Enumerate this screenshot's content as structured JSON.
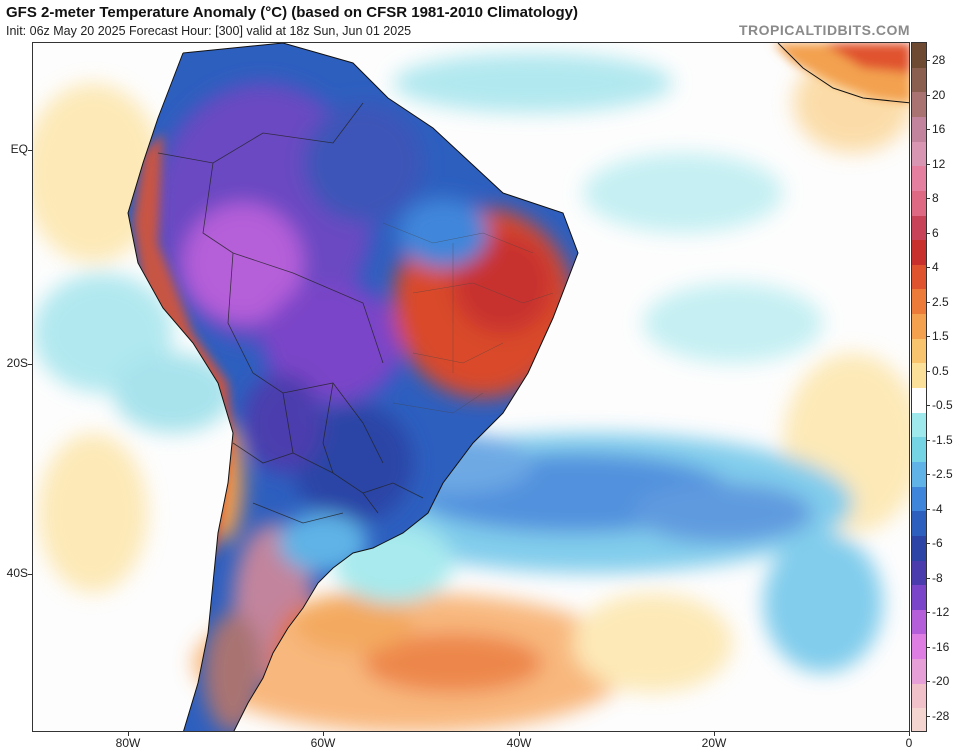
{
  "header": {
    "title": "GFS 2-meter Temperature Anomaly (°C) (based on CFSR 1981-2010 Climatology)",
    "subtitle": "Init: 06z May 20 2025   Forecast Hour: [300]   valid at 18z Sun, Jun 01 2025",
    "watermark": "TROPICALTIDBITS.COM"
  },
  "map": {
    "region": "South America",
    "lat_labels": [
      "EQ",
      "20S",
      "40S"
    ],
    "lon_labels": [
      "80W",
      "60W",
      "40W",
      "20W",
      "0"
    ]
  },
  "colorbar": {
    "labels": [
      "28",
      "20",
      "16",
      "12",
      "8",
      "6",
      "4",
      "2.5",
      "1.5",
      "0.5",
      "-0.5",
      "-1.5",
      "-2.5",
      "-4",
      "-6",
      "-8",
      "-12",
      "-16",
      "-20",
      "-28"
    ],
    "colors": [
      "#6e4a33",
      "#8a5f4f",
      "#a97372",
      "#c2849c",
      "#d996b2",
      "#e57fa0",
      "#dd6a82",
      "#c94358",
      "#c8302e",
      "#e0532f",
      "#ec7a39",
      "#f3a14f",
      "#f8c46e",
      "#fbe09a",
      "#ffffff",
      "#9fe8ec",
      "#74d4e4",
      "#5fb3e6",
      "#3f86da",
      "#2d5fbf",
      "#2b44a6",
      "#4b3cad",
      "#7a45c8",
      "#b55ed9",
      "#de7ee3",
      "#e6a0d7",
      "#f0c1c8",
      "#f5d5d0"
    ]
  },
  "legend_colors": {
    "warm": "#e0532f",
    "cool": "#3f86da",
    "very_cold": "#7a45c8"
  }
}
